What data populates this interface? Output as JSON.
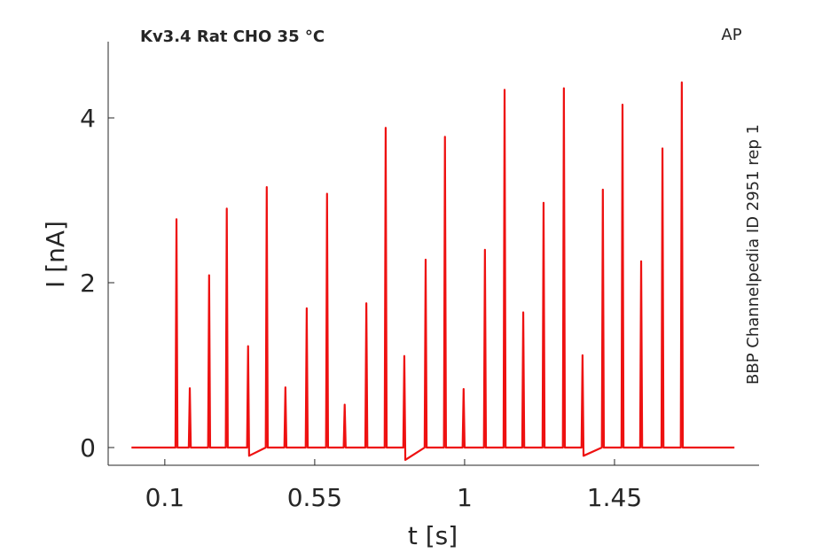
{
  "chart_data": {
    "type": "line",
    "title": "Kv3.4  Rat  CHO  35 °C",
    "corner_label": "AP",
    "side_label": "BBP Channelpedia ID 2951 rep 1",
    "x_label": "t [s]",
    "y_label": "I [nA]",
    "x": [
      0,
      0.132,
      0.135,
      0.138,
      0.172,
      0.175,
      0.178,
      0.23,
      0.233,
      0.236,
      0.283,
      0.286,
      0.289,
      0.347,
      0.35,
      0.353,
      0.403,
      0.406,
      0.409,
      0.459,
      0.462,
      0.465,
      0.523,
      0.526,
      0.529,
      0.584,
      0.587,
      0.59,
      0.637,
      0.64,
      0.643,
      0.702,
      0.705,
      0.708,
      0.76,
      0.763,
      0.766,
      0.816,
      0.819,
      0.822,
      0.88,
      0.883,
      0.886,
      0.938,
      0.941,
      0.944,
      0.994,
      0.997,
      1.0,
      1.058,
      1.061,
      1.064,
      1.117,
      1.12,
      1.123,
      1.173,
      1.176,
      1.179,
      1.234,
      1.237,
      1.24,
      1.295,
      1.298,
      1.301,
      1.351,
      1.354,
      1.357,
      1.412,
      1.415,
      1.418,
      1.471,
      1.474,
      1.477,
      1.527,
      1.53,
      1.533,
      1.591,
      1.594,
      1.597,
      1.649,
      1.652,
      1.655,
      1.81
    ],
    "series": [
      {
        "name": "AP",
        "color": "#ee1111",
        "values": [
          0,
          0,
          2.77,
          0,
          0,
          0.72,
          0,
          0,
          2.09,
          0,
          0,
          2.9,
          0,
          0,
          1.23,
          -0.1,
          0,
          3.16,
          0,
          0,
          0.73,
          0,
          0,
          1.69,
          0,
          0,
          3.08,
          0,
          0,
          0.52,
          0,
          0,
          1.75,
          0,
          0,
          3.88,
          0,
          0,
          1.11,
          -0.15,
          0,
          2.28,
          0,
          0,
          3.77,
          0,
          0,
          0.71,
          0,
          0,
          2.4,
          0,
          0,
          4.34,
          0,
          0,
          1.64,
          0,
          0,
          2.97,
          0,
          0,
          4.36,
          0,
          0,
          1.12,
          -0.1,
          0,
          3.13,
          0,
          0,
          4.16,
          0,
          0,
          2.26,
          0,
          0,
          3.63,
          0,
          0,
          4.43,
          0,
          0
        ]
      }
    ],
    "xlim": [
      -0.07,
      1.884
    ],
    "ylim": [
      -0.215,
      4.925
    ],
    "xticks": [
      0.1,
      0.55,
      1,
      1.45
    ],
    "yticks": [
      0,
      2,
      4
    ],
    "grid": false
  }
}
